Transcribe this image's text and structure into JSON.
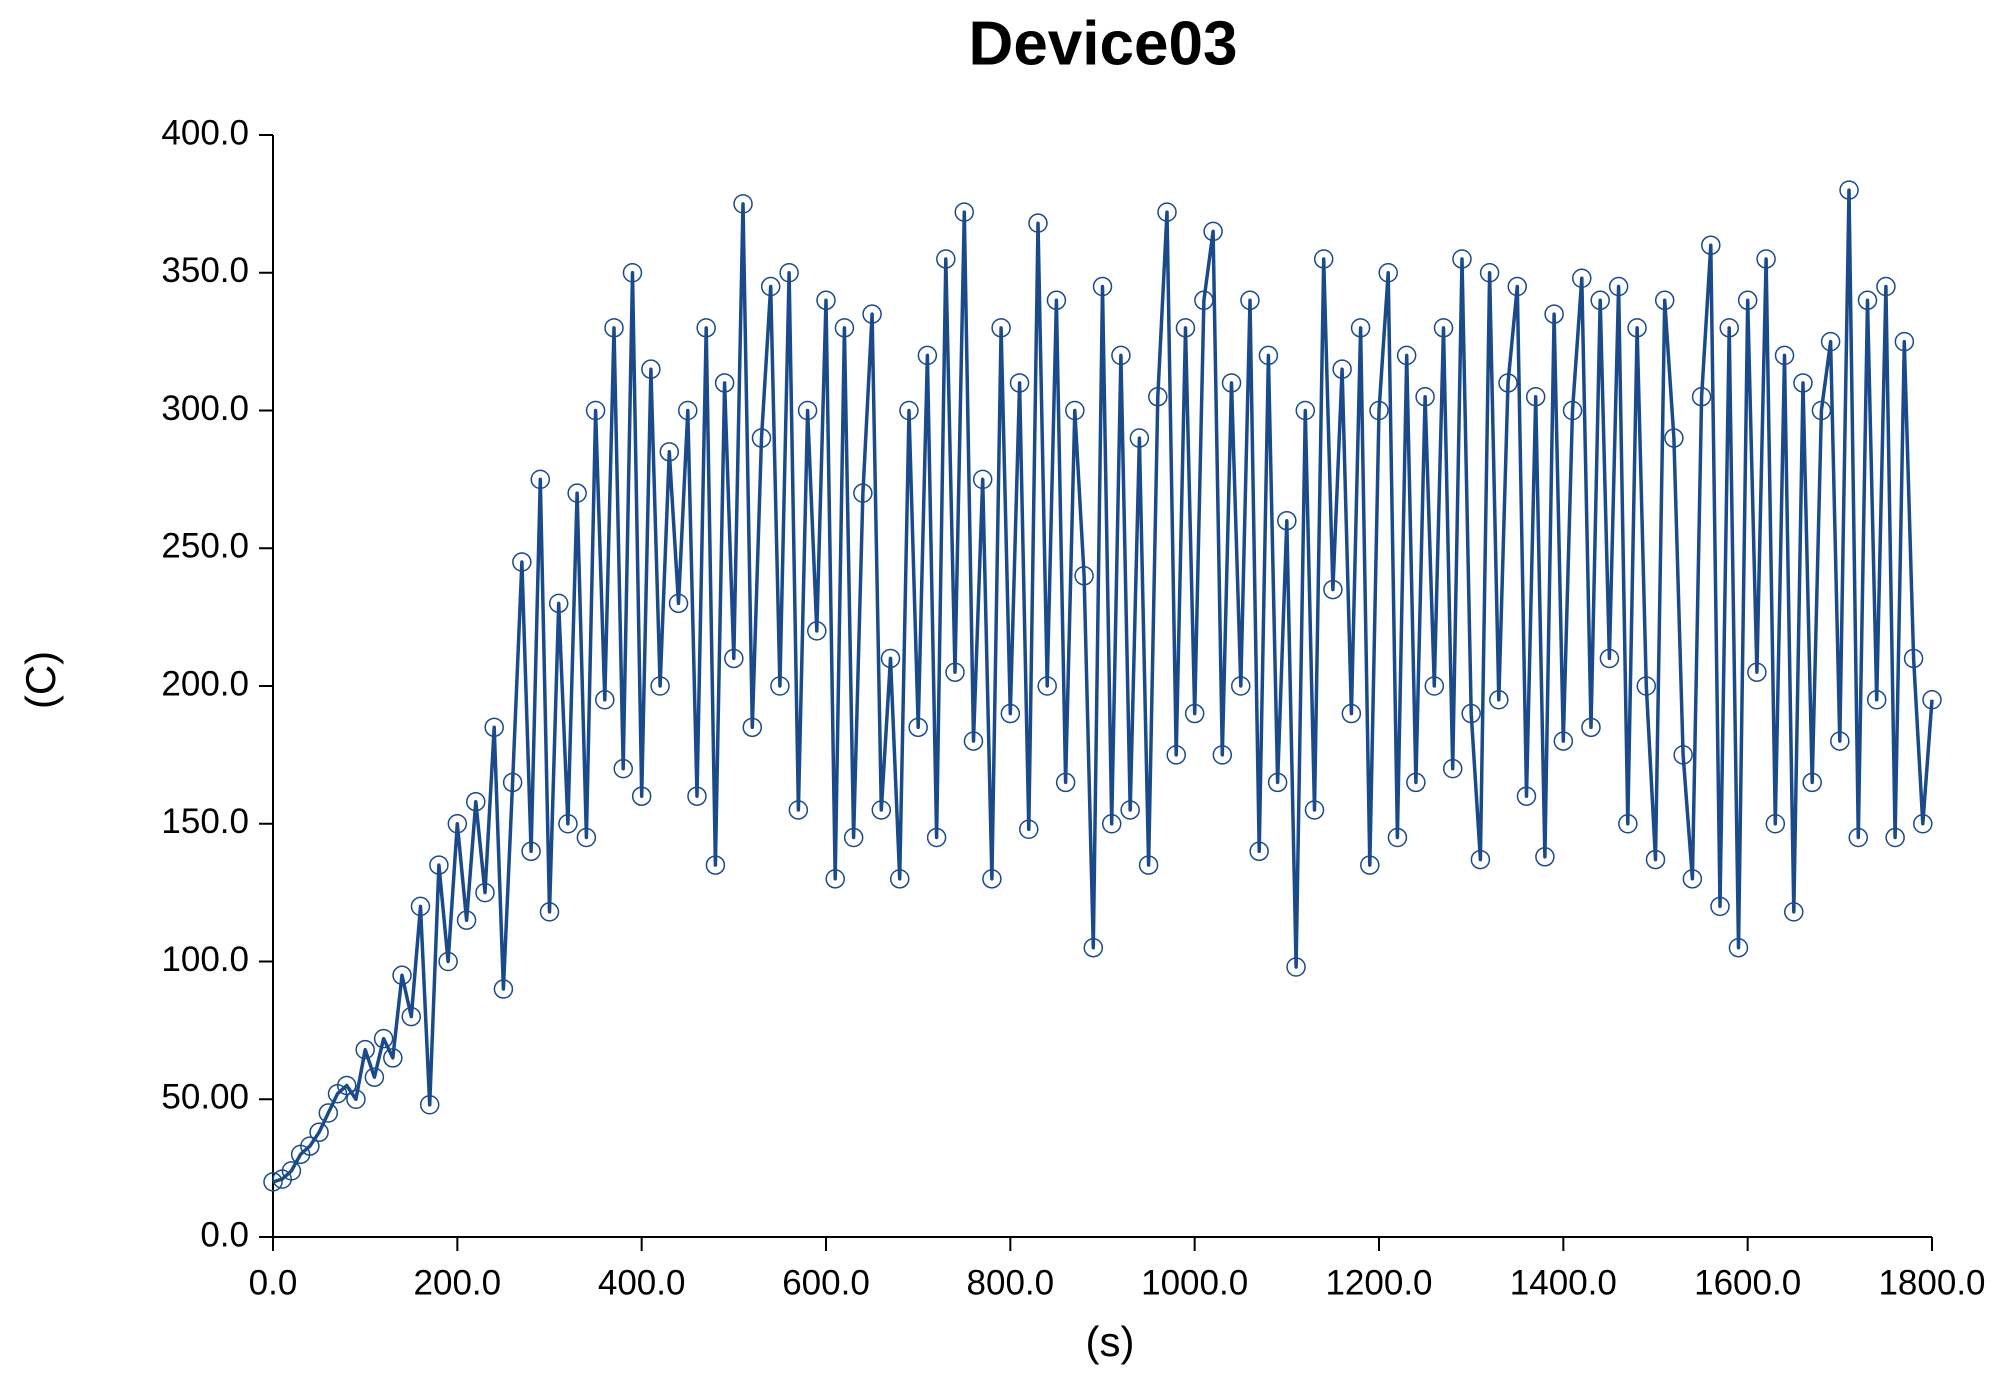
{
  "chart_data": {
    "type": "line",
    "title": "Device03",
    "xlabel": "(s)",
    "ylabel": "(C)",
    "xlim": [
      0,
      1800
    ],
    "ylim": [
      0,
      400
    ],
    "xticks": [
      {
        "value": 0,
        "label": "0.0"
      },
      {
        "value": 200,
        "label": "200.0"
      },
      {
        "value": 400,
        "label": "400.0"
      },
      {
        "value": 600,
        "label": "600.0"
      },
      {
        "value": 800,
        "label": "800.0"
      },
      {
        "value": 1000,
        "label": "1000.0"
      },
      {
        "value": 1200,
        "label": "1200.0"
      },
      {
        "value": 1400,
        "label": "1400.0"
      },
      {
        "value": 1600,
        "label": "1600.0"
      },
      {
        "value": 1800,
        "label": "1800.0"
      }
    ],
    "yticks": [
      {
        "value": 0,
        "label": "0.0"
      },
      {
        "value": 50,
        "label": "50.00"
      },
      {
        "value": 100,
        "label": "100.0"
      },
      {
        "value": 150,
        "label": "150.0"
      },
      {
        "value": 200,
        "label": "200.0"
      },
      {
        "value": 250,
        "label": "250.0"
      },
      {
        "value": 300,
        "label": "300.0"
      },
      {
        "value": 350,
        "label": "350.0"
      },
      {
        "value": 400,
        "label": "400.0"
      }
    ],
    "grid": false,
    "markers": true,
    "color": "#1a4a8a",
    "x": [
      0,
      10,
      20,
      30,
      40,
      50,
      60,
      70,
      80,
      90,
      100,
      110,
      120,
      130,
      140,
      150,
      160,
      170,
      180,
      190,
      200,
      210,
      220,
      230,
      240,
      250,
      260,
      270,
      280,
      290,
      300,
      310,
      320,
      330,
      340,
      350,
      360,
      370,
      380,
      390,
      400,
      410,
      420,
      430,
      440,
      450,
      460,
      470,
      480,
      490,
      500,
      510,
      520,
      530,
      540,
      550,
      560,
      570,
      580,
      590,
      600,
      610,
      620,
      630,
      640,
      650,
      660,
      670,
      680,
      690,
      700,
      710,
      720,
      730,
      740,
      750,
      760,
      770,
      780,
      790,
      800,
      810,
      820,
      830,
      840,
      850,
      860,
      870,
      880,
      890,
      900,
      910,
      920,
      930,
      940,
      950,
      960,
      970,
      980,
      990,
      1000,
      1010,
      1020,
      1030,
      1040,
      1050,
      1060,
      1070,
      1080,
      1090,
      1100,
      1110,
      1120,
      1130,
      1140,
      1150,
      1160,
      1170,
      1180,
      1190,
      1200,
      1210,
      1220,
      1230,
      1240,
      1250,
      1260,
      1270,
      1280,
      1290,
      1300,
      1310,
      1320,
      1330,
      1340,
      1350,
      1360,
      1370,
      1380,
      1390,
      1400,
      1410,
      1420,
      1430,
      1440,
      1450,
      1460,
      1470,
      1480,
      1490,
      1500,
      1510,
      1520,
      1530,
      1540,
      1550,
      1560,
      1570,
      1580,
      1590,
      1600,
      1610,
      1620,
      1630,
      1640,
      1650,
      1660,
      1670,
      1680,
      1690,
      1700,
      1710,
      1720,
      1730,
      1740,
      1750,
      1760,
      1770,
      1780,
      1790,
      1800
    ],
    "values": [
      20,
      21,
      24,
      30,
      33,
      38,
      45,
      52,
      55,
      50,
      68,
      58,
      72,
      65,
      95,
      80,
      120,
      48,
      135,
      100,
      150,
      115,
      158,
      125,
      185,
      90,
      165,
      245,
      140,
      275,
      118,
      230,
      150,
      270,
      145,
      300,
      195,
      330,
      170,
      350,
      160,
      315,
      200,
      285,
      230,
      300,
      160,
      330,
      135,
      310,
      210,
      375,
      185,
      290,
      345,
      200,
      350,
      155,
      300,
      220,
      340,
      130,
      330,
      145,
      270,
      335,
      155,
      210,
      130,
      300,
      185,
      320,
      145,
      355,
      205,
      372,
      180,
      275,
      130,
      330,
      190,
      310,
      148,
      368,
      200,
      340,
      165,
      300,
      240,
      105,
      345,
      150,
      320,
      155,
      290,
      135,
      305,
      372,
      175,
      330,
      190,
      340,
      365,
      175,
      310,
      200,
      340,
      140,
      320,
      165,
      260,
      98,
      300,
      155,
      355,
      235,
      315,
      190,
      330,
      135,
      300,
      350,
      145,
      320,
      165,
      305,
      200,
      330,
      170,
      355,
      190,
      137,
      350,
      195,
      310,
      345,
      160,
      305,
      138,
      335,
      180,
      300,
      348,
      185,
      340,
      210,
      345,
      150,
      330,
      200,
      137,
      340,
      290,
      175,
      130,
      305,
      360,
      120,
      330,
      105,
      340,
      205,
      355,
      150,
      320,
      118,
      310,
      165,
      300,
      325,
      180,
      380,
      145,
      340,
      195,
      345,
      145,
      325,
      210,
      150,
      195
    ]
  }
}
